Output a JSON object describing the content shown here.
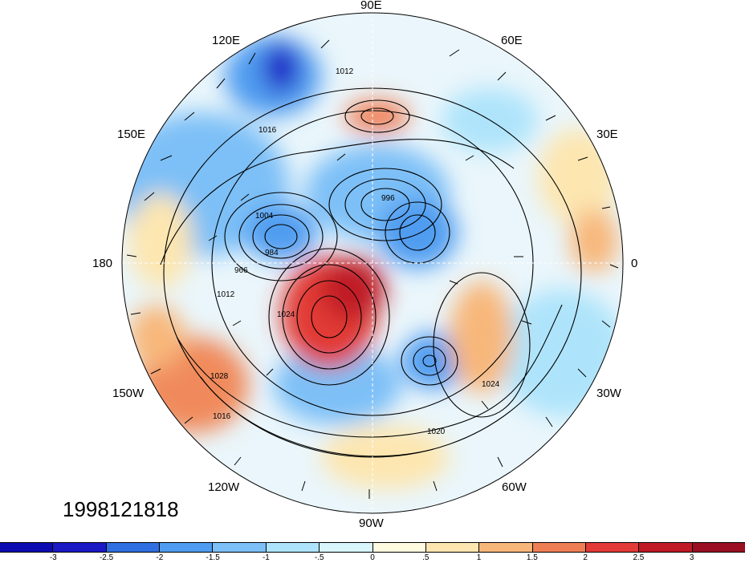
{
  "map": {
    "projection": "north polar stereographic",
    "date_label": "1998121818",
    "lon_labels": [
      "90E",
      "60E",
      "120E",
      "150E",
      "30E",
      "180",
      "0",
      "150W",
      "30W",
      "120W",
      "60W",
      "90W"
    ],
    "contour_labels": [
      "1012",
      "1016",
      "1024",
      "1004",
      "984",
      "966",
      "996",
      "1020",
      "1028",
      "1016",
      "1024",
      "1012"
    ],
    "colorbar": {
      "colors": [
        "#1a19c4",
        "#2f6fe0",
        "#4f9cf0",
        "#7dc0f7",
        "#aee4fb",
        "#d9f6fd",
        "#fffbe0",
        "#fde6b0",
        "#f8b77a",
        "#f07e55",
        "#e23a36",
        "#c01a26",
        "#9a0f22"
      ],
      "ticks": [
        "-3",
        "-2.5",
        "-2",
        "-1.5",
        "-1",
        "-.5",
        "0",
        ".5",
        "1",
        "1.5",
        "2",
        "2.5",
        "3"
      ]
    }
  }
}
